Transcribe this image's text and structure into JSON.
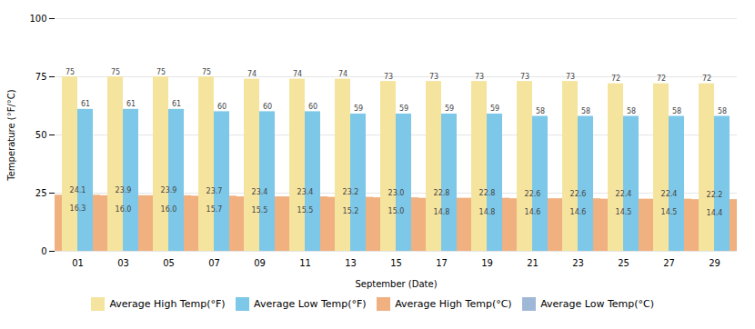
{
  "chart_data": {
    "type": "bar",
    "categories": [
      "01",
      "03",
      "05",
      "07",
      "09",
      "11",
      "13",
      "15",
      "17",
      "19",
      "21",
      "23",
      "25",
      "27",
      "29"
    ],
    "xlabel": "September (Date)",
    "ylabel": "Temperature (°F/°C)",
    "ylim": [
      0,
      100
    ],
    "yticks": [
      0,
      25,
      50,
      75,
      100
    ],
    "grid": true,
    "data_labels": true,
    "legend": "bottom",
    "series": [
      {
        "name": "Average High Temp(°F)",
        "color": "#F5E49E",
        "values": [
          75,
          75,
          75,
          75,
          74,
          74,
          74,
          73,
          73,
          73,
          73,
          73,
          72,
          72,
          72
        ]
      },
      {
        "name": "Average Low Temp(°F)",
        "color": "#7DC8E8",
        "values": [
          61,
          61,
          61,
          60,
          60,
          60,
          59,
          59,
          59,
          59,
          58,
          58,
          58,
          58,
          58
        ]
      },
      {
        "name": "Average High Temp(°C)",
        "color": "#F0B080",
        "values": [
          24.1,
          23.9,
          23.9,
          23.7,
          23.4,
          23.4,
          23.2,
          23.0,
          22.8,
          22.8,
          22.6,
          22.6,
          22.4,
          22.4,
          22.2
        ],
        "value_labels": [
          "24.1",
          "23.9",
          "23.9",
          "23.7",
          "23.4",
          "23.4",
          "23.2",
          "23.0",
          "22.8",
          "22.8",
          "22.6",
          "22.6",
          "22.4",
          "22.4",
          "22.2"
        ]
      },
      {
        "name": "Average Low Temp(°C)",
        "color": "#A0B8D8",
        "values": [
          16.3,
          16.0,
          16.0,
          15.7,
          15.5,
          15.5,
          15.2,
          15.0,
          14.8,
          14.8,
          14.6,
          14.6,
          14.5,
          14.5,
          14.4
        ],
        "value_labels": [
          "16.3",
          "16.0",
          "16.0",
          "15.7",
          "15.5",
          "15.5",
          "15.2",
          "15.0",
          "14.8",
          "14.8",
          "14.6",
          "14.6",
          "14.5",
          "14.5",
          "14.4"
        ]
      }
    ]
  }
}
